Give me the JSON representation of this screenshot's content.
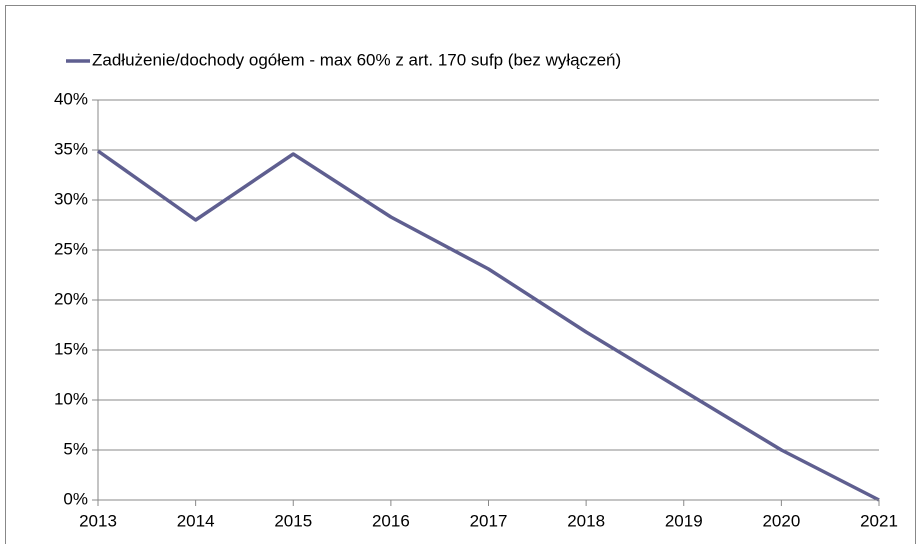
{
  "chart_data": {
    "type": "line",
    "x": [
      2013,
      2014,
      2015,
      2016,
      2017,
      2018,
      2019,
      2020,
      2021
    ],
    "series": [
      {
        "name": "Zadłużenie/dochody ogółem - max 60% z art. 170 sufp (bez wyłączeń)",
        "color": "#5f5f90",
        "values": [
          34.9,
          28.0,
          34.6,
          28.3,
          23.1,
          16.8,
          10.9,
          5.0,
          0.0
        ]
      }
    ],
    "xlim": [
      2013,
      2021
    ],
    "xticks": [
      2013,
      2014,
      2015,
      2016,
      2017,
      2018,
      2019,
      2020,
      2021
    ],
    "ylim": [
      0,
      40
    ],
    "yticks": [
      {
        "value": 0,
        "label": "0%"
      },
      {
        "value": 5,
        "label": "5%"
      },
      {
        "value": 10,
        "label": "10%"
      },
      {
        "value": 15,
        "label": "15%"
      },
      {
        "value": 20,
        "label": "20%"
      },
      {
        "value": 25,
        "label": "25%"
      },
      {
        "value": 30,
        "label": "30%"
      },
      {
        "value": 35,
        "label": "35%"
      },
      {
        "value": 40,
        "label": "40%"
      }
    ],
    "grid": true,
    "legend": "top-left"
  }
}
